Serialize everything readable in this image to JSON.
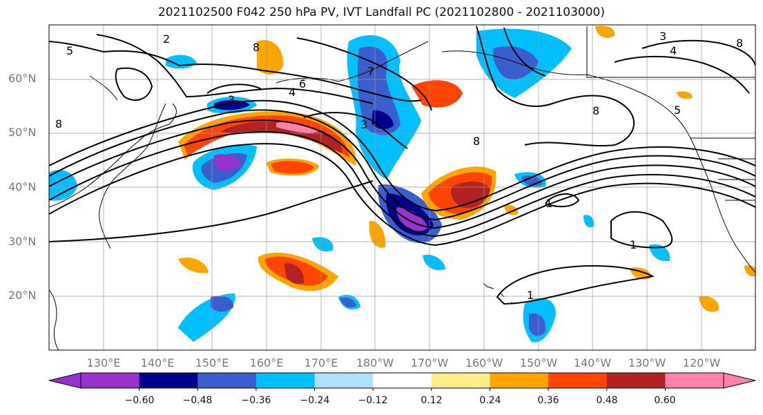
{
  "title": "2021102500 F042 250 hPa PV, IVT Landfall PC (2021102800 - 2021103000)",
  "lat_labels": [
    "60°N",
    "50°N",
    "40°N",
    "30°N",
    "20°N"
  ],
  "lon_labels": [
    "130°E",
    "140°E",
    "150°E",
    "160°E",
    "170°E",
    "180°W",
    "170°W",
    "160°W",
    "150°W",
    "140°W",
    "130°W",
    "120°W"
  ],
  "colorbar": {
    "colors": [
      "#9932cc",
      "#00008b",
      "#3a5fcd",
      "#00bfff",
      "#b0e2ff",
      "#ffffff",
      "#ffec8b",
      "#ffa500",
      "#ff4500",
      "#b22222",
      "#ff82ab"
    ],
    "tick_labels": [
      "−0.60",
      "−0.48",
      "−0.36",
      "−0.24",
      "−0.12",
      "0.12",
      "0.24",
      "0.36",
      "0.48",
      "0.60"
    ]
  },
  "contour_labels": [
    "5",
    "6",
    "7",
    "8",
    "3",
    "2",
    "4",
    "1"
  ]
}
